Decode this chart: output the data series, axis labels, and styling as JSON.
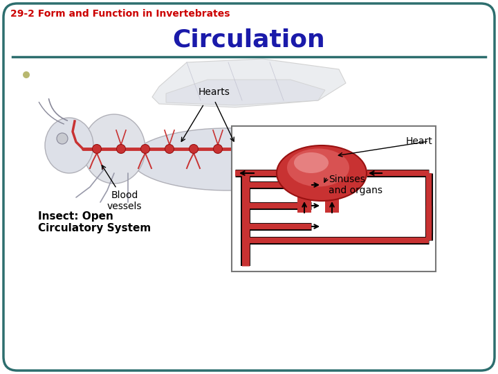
{
  "title": "Circulation",
  "subtitle": "29-2 Form and Function in Invertebrates",
  "subtitle_color": "#cc0000",
  "title_color": "#1a1aaa",
  "background_color": "#ffffff",
  "border_color": "#2d6e6e",
  "separator_color": "#2d6e6e",
  "bullet_color": "#b8b870",
  "label_hearts": "Hearts",
  "label_blood_vessels": "Blood\nvessels",
  "label_insect": "Insect: Open\nCirculatory System",
  "label_heart": "Heart",
  "label_sinuses": "Sinuses\nand organs",
  "red_vessel": "#c83232",
  "red_vessel_light": "#e87878",
  "insect_body_color": "#dde0e8",
  "insect_edge_color": "#aaaaaa",
  "inset_bg": "#ffffff",
  "inset_border": "#888888",
  "title_fontsize": 26,
  "subtitle_fontsize": 10,
  "label_fontsize": 9,
  "insect_label_fontsize": 11
}
